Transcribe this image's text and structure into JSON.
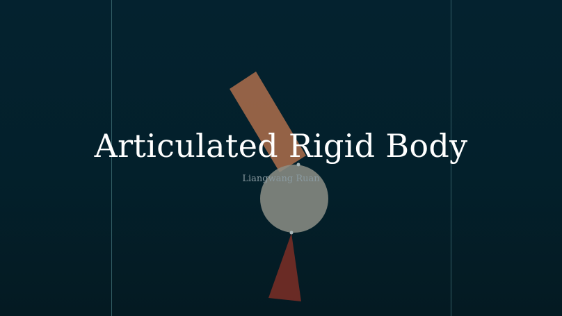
{
  "slide": {
    "title": "Articulated Rigid Body",
    "author": "Liangwang Ruan"
  },
  "colors": {
    "background_top": "#04222f",
    "background_bottom": "#041a22",
    "guide_line": "#3f6f76",
    "upper_body": "#b9734e",
    "middle_body": "#8d8f86",
    "lower_body": "#7d2e26",
    "joint": "#aab7b9",
    "title": "#ffffff",
    "author": "#8a9aa0"
  }
}
